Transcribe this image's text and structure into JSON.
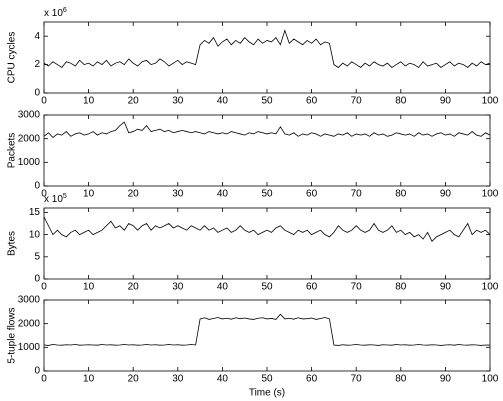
{
  "chart_data": [
    {
      "type": "line",
      "ylabel": "CPU cycles",
      "y_scale_label": "x 10",
      "y_scale_exponent": "6",
      "color": "#000000",
      "xlim": [
        0,
        100
      ],
      "xticks": [
        0,
        10,
        20,
        30,
        40,
        50,
        60,
        70,
        80,
        90,
        100
      ],
      "ylim": [
        0,
        5
      ],
      "yticks": [
        0,
        2,
        4
      ],
      "x": [
        0,
        1,
        2,
        3,
        4,
        5,
        6,
        7,
        8,
        9,
        10,
        11,
        12,
        13,
        14,
        15,
        16,
        17,
        18,
        19,
        20,
        21,
        22,
        23,
        24,
        25,
        26,
        27,
        28,
        29,
        30,
        31,
        32,
        33,
        34,
        35,
        36,
        37,
        38,
        39,
        40,
        41,
        42,
        43,
        44,
        45,
        46,
        47,
        48,
        49,
        50,
        51,
        52,
        53,
        54,
        55,
        56,
        57,
        58,
        59,
        60,
        61,
        62,
        63,
        64,
        65,
        66,
        67,
        68,
        69,
        70,
        71,
        72,
        73,
        74,
        75,
        76,
        77,
        78,
        79,
        80,
        81,
        82,
        83,
        84,
        85,
        86,
        87,
        88,
        89,
        90,
        91,
        92,
        93,
        94,
        95,
        96,
        97,
        98,
        99,
        100
      ],
      "values": [
        2.1,
        1.9,
        2.2,
        2.0,
        1.8,
        2.2,
        2.1,
        1.9,
        2.3,
        2.0,
        2.1,
        1.9,
        2.2,
        2.0,
        2.3,
        1.9,
        2.1,
        2.2,
        2.0,
        2.4,
        2.1,
        1.9,
        2.2,
        2.3,
        2.0,
        2.1,
        2.4,
        2.2,
        1.9,
        2.1,
        2.3,
        2.0,
        2.2,
        2.1,
        2.0,
        3.4,
        3.7,
        3.5,
        3.9,
        3.3,
        3.6,
        3.8,
        3.4,
        3.7,
        3.5,
        3.9,
        3.6,
        3.4,
        3.8,
        3.5,
        3.7,
        3.6,
        3.9,
        3.4,
        4.4,
        3.5,
        3.8,
        3.6,
        3.4,
        3.7,
        3.5,
        3.8,
        3.4,
        3.6,
        3.5,
        2.0,
        1.8,
        2.1,
        1.9,
        2.2,
        2.0,
        1.8,
        2.1,
        1.9,
        2.2,
        2.0,
        1.9,
        2.1,
        1.8,
        2.0,
        2.2,
        1.9,
        2.1,
        2.0,
        1.8,
        2.2,
        1.9,
        2.0,
        2.1,
        1.8,
        2.0,
        2.2,
        1.9,
        2.1,
        2.0,
        1.8,
        2.1,
        1.9,
        2.2,
        2.0,
        2.1
      ]
    },
    {
      "type": "line",
      "ylabel": "Packets",
      "color": "#000000",
      "xlim": [
        0,
        100
      ],
      "xticks": [
        0,
        10,
        20,
        30,
        40,
        50,
        60,
        70,
        80,
        90,
        100
      ],
      "ylim": [
        0,
        3000
      ],
      "yticks": [
        0,
        1000,
        2000,
        3000
      ],
      "x": [
        0,
        1,
        2,
        3,
        4,
        5,
        6,
        7,
        8,
        9,
        10,
        11,
        12,
        13,
        14,
        15,
        16,
        17,
        18,
        19,
        20,
        21,
        22,
        23,
        24,
        25,
        26,
        27,
        28,
        29,
        30,
        31,
        32,
        33,
        34,
        35,
        36,
        37,
        38,
        39,
        40,
        41,
        42,
        43,
        44,
        45,
        46,
        47,
        48,
        49,
        50,
        51,
        52,
        53,
        54,
        55,
        56,
        57,
        58,
        59,
        60,
        61,
        62,
        63,
        64,
        65,
        66,
        67,
        68,
        69,
        70,
        71,
        72,
        73,
        74,
        75,
        76,
        77,
        78,
        79,
        80,
        81,
        82,
        83,
        84,
        85,
        86,
        87,
        88,
        89,
        90,
        91,
        92,
        93,
        94,
        95,
        96,
        97,
        98,
        99,
        100
      ],
      "values": [
        2100,
        2250,
        2050,
        2200,
        2150,
        2300,
        2100,
        2200,
        2250,
        2150,
        2200,
        2300,
        2150,
        2250,
        2200,
        2300,
        2350,
        2550,
        2700,
        2250,
        2300,
        2400,
        2350,
        2550,
        2300,
        2350,
        2400,
        2300,
        2350,
        2250,
        2300,
        2350,
        2300,
        2250,
        2300,
        2250,
        2200,
        2300,
        2250,
        2200,
        2250,
        2200,
        2300,
        2250,
        2200,
        2150,
        2250,
        2200,
        2300,
        2250,
        2200,
        2250,
        2200,
        2500,
        2200,
        2150,
        2250,
        2100,
        2200,
        2150,
        2250,
        2200,
        2100,
        2200,
        2150,
        2100,
        2200,
        2150,
        2250,
        2100,
        2200,
        2150,
        2200,
        2100,
        2250,
        2150,
        2200,
        2100,
        2150,
        2250,
        2200,
        2150,
        2200,
        2100,
        2250,
        2150,
        2200,
        2100,
        2200,
        2250,
        2150,
        2200,
        2100,
        2250,
        2200,
        2150,
        2300,
        2150,
        2100,
        2250,
        2150
      ]
    },
    {
      "type": "line",
      "ylabel": "Bytes",
      "y_scale_label": "x 10",
      "y_scale_exponent": "5",
      "color": "#000000",
      "xlim": [
        0,
        100
      ],
      "xticks": [
        0,
        10,
        20,
        30,
        40,
        50,
        60,
        70,
        80,
        90,
        100
      ],
      "ylim": [
        0,
        16
      ],
      "yticks": [
        0,
        5,
        10,
        15
      ],
      "x": [
        0,
        1,
        2,
        3,
        4,
        5,
        6,
        7,
        8,
        9,
        10,
        11,
        12,
        13,
        14,
        15,
        16,
        17,
        18,
        19,
        20,
        21,
        22,
        23,
        24,
        25,
        26,
        27,
        28,
        29,
        30,
        31,
        32,
        33,
        34,
        35,
        36,
        37,
        38,
        39,
        40,
        41,
        42,
        43,
        44,
        45,
        46,
        47,
        48,
        49,
        50,
        51,
        52,
        53,
        54,
        55,
        56,
        57,
        58,
        59,
        60,
        61,
        62,
        63,
        64,
        65,
        66,
        67,
        68,
        69,
        70,
        71,
        72,
        73,
        74,
        75,
        76,
        77,
        78,
        79,
        80,
        81,
        82,
        83,
        84,
        85,
        86,
        87,
        88,
        89,
        90,
        91,
        92,
        93,
        94,
        95,
        96,
        97,
        98,
        99,
        100
      ],
      "values": [
        14,
        12,
        10,
        11,
        10,
        9.5,
        10.5,
        11,
        10,
        10.5,
        11,
        10,
        10.5,
        11,
        12,
        13,
        11.5,
        12,
        11,
        12.5,
        12,
        11,
        12,
        12.5,
        11,
        12,
        11.5,
        12,
        12.5,
        11.5,
        12,
        11.5,
        11,
        12,
        11.5,
        11,
        12,
        11,
        11.5,
        10.5,
        11,
        11.5,
        10.5,
        11,
        12,
        11,
        10.5,
        11,
        10,
        10.5,
        11,
        10.5,
        11.5,
        12,
        11,
        10.5,
        10,
        11,
        10.5,
        11,
        10,
        10.5,
        11,
        10,
        9.5,
        10.5,
        12,
        11,
        10.5,
        11,
        12,
        11,
        10.5,
        11,
        12.5,
        11,
        10.5,
        11,
        12,
        10.5,
        11,
        10,
        10.5,
        9.5,
        10,
        9,
        10.5,
        8.5,
        9.5,
        10,
        10.5,
        11,
        10,
        9.5,
        11,
        12.5,
        10,
        11,
        10.5,
        11,
        10
      ]
    },
    {
      "type": "line",
      "ylabel": "5-tuple flows",
      "xlabel": "Time (s)",
      "color": "#000000",
      "xlim": [
        0,
        100
      ],
      "xticks": [
        0,
        10,
        20,
        30,
        40,
        50,
        60,
        70,
        80,
        90,
        100
      ],
      "ylim": [
        0,
        3000
      ],
      "yticks": [
        0,
        1000,
        2000,
        3000
      ],
      "x": [
        0,
        1,
        2,
        3,
        4,
        5,
        6,
        7,
        8,
        9,
        10,
        11,
        12,
        13,
        14,
        15,
        16,
        17,
        18,
        19,
        20,
        21,
        22,
        23,
        24,
        25,
        26,
        27,
        28,
        29,
        30,
        31,
        32,
        33,
        34,
        35,
        36,
        37,
        38,
        39,
        40,
        41,
        42,
        43,
        44,
        45,
        46,
        47,
        48,
        49,
        50,
        51,
        52,
        53,
        54,
        55,
        56,
        57,
        58,
        59,
        60,
        61,
        62,
        63,
        64,
        65,
        66,
        67,
        68,
        69,
        70,
        71,
        72,
        73,
        74,
        75,
        76,
        77,
        78,
        79,
        80,
        81,
        82,
        83,
        84,
        85,
        86,
        87,
        88,
        89,
        90,
        91,
        92,
        93,
        94,
        95,
        96,
        97,
        98,
        99,
        100
      ],
      "values": [
        1100,
        1080,
        1120,
        1100,
        1090,
        1110,
        1100,
        1120,
        1090,
        1100,
        1110,
        1100,
        1090,
        1120,
        1100,
        1110,
        1090,
        1100,
        1120,
        1100,
        1110,
        1090,
        1100,
        1120,
        1100,
        1110,
        1090,
        1100,
        1120,
        1100,
        1110,
        1090,
        1100,
        1120,
        1100,
        2200,
        2250,
        2180,
        2220,
        2260,
        2200,
        2230,
        2190,
        2250,
        2210,
        2240,
        2200,
        2180,
        2230,
        2250,
        2200,
        2220,
        2180,
        2400,
        2200,
        2230,
        2190,
        2250,
        2200,
        2210,
        2240,
        2180,
        2220,
        2260,
        2200,
        1100,
        1080,
        1110,
        1090,
        1100,
        1120,
        1100,
        1090,
        1110,
        1100,
        1080,
        1110,
        1100,
        1090,
        1120,
        1100,
        1110,
        1090,
        1100,
        1120,
        1100,
        1090,
        1110,
        1100,
        1080,
        1100,
        1110,
        1090,
        1120,
        1100,
        1090,
        1110,
        1100,
        1080,
        1100,
        1090
      ]
    }
  ]
}
